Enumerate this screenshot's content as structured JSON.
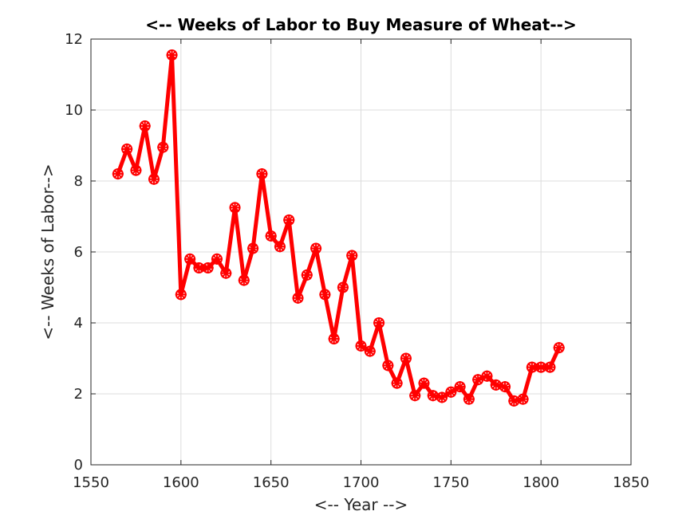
{
  "chart_data": {
    "type": "line",
    "title": "<-- Weeks of Labor to Buy Measure of Wheat-->",
    "xlabel": "<-- Year -->",
    "ylabel": "<-- Weeks of Labor-->",
    "xlim": [
      1550,
      1850
    ],
    "ylim": [
      0,
      12
    ],
    "xticks": [
      "1550",
      "1600",
      "1650",
      "1700",
      "1750",
      "1800",
      "1850"
    ],
    "yticks": [
      "0",
      "2",
      "4",
      "6",
      "8",
      "10",
      "12"
    ],
    "grid": true,
    "legend": "none",
    "series": [
      {
        "color": "#ff0000",
        "marker": "asterisk-circle",
        "x": [
          1565,
          1570,
          1575,
          1580,
          1585,
          1590,
          1595,
          1600,
          1605,
          1610,
          1615,
          1620,
          1625,
          1630,
          1635,
          1640,
          1645,
          1650,
          1655,
          1660,
          1665,
          1670,
          1675,
          1680,
          1685,
          1690,
          1695,
          1700,
          1705,
          1710,
          1715,
          1720,
          1725,
          1730,
          1735,
          1740,
          1745,
          1750,
          1755,
          1760,
          1765,
          1770,
          1775,
          1780,
          1785,
          1790,
          1795,
          1800,
          1805,
          1810
        ],
        "y": [
          8.2,
          8.9,
          8.3,
          9.55,
          8.05,
          8.95,
          11.55,
          4.8,
          5.8,
          5.55,
          5.55,
          5.8,
          5.4,
          7.25,
          5.2,
          6.1,
          8.2,
          6.45,
          6.15,
          6.9,
          4.7,
          5.35,
          6.1,
          4.8,
          3.55,
          5.0,
          5.9,
          3.35,
          3.2,
          4.0,
          2.8,
          2.3,
          3.0,
          1.95,
          2.3,
          1.95,
          1.9,
          2.05,
          2.2,
          1.85,
          2.4,
          2.5,
          2.25,
          2.2,
          1.8,
          1.85,
          2.75,
          2.75,
          2.75,
          3.3
        ]
      }
    ]
  }
}
